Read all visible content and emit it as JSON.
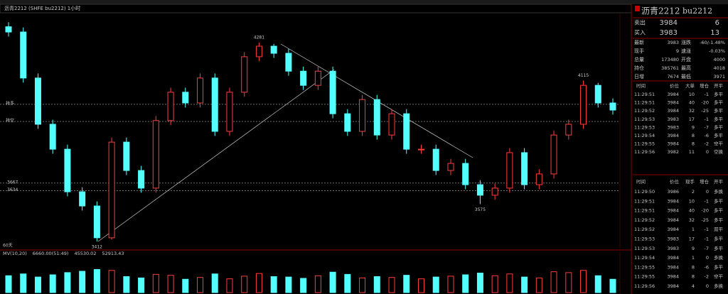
{
  "chart_data": {
    "type": "candlestick",
    "title": "沥青2212 (SHFE bu2212) 1小时",
    "open": [
      4350,
      4327,
      4126,
      3924,
      3815,
      3629,
      3567,
      3428,
      3846,
      3722,
      3645,
      3940,
      4064,
      4017,
      4126,
      3893,
      4064,
      4219,
      4265,
      4234,
      4156,
      4094,
      4156,
      3970,
      3893,
      4032,
      3877,
      3970,
      3815,
      3815,
      3722,
      3753,
      3660,
      3614,
      3645,
      3800,
      3660,
      3707,
      3877,
      3924,
      4094,
      4017
    ],
    "high": [
      4370,
      4347,
      4146,
      3944,
      3835,
      3649,
      3587,
      3866,
      3866,
      3742,
      3960,
      4084,
      4084,
      4146,
      4146,
      4084,
      4239,
      4281,
      4275,
      4254,
      4176,
      4176,
      4176,
      3990,
      4052,
      4052,
      3990,
      3990,
      3835,
      3835,
      3773,
      3773,
      3680,
      3665,
      3820,
      3820,
      3727,
      3897,
      3944,
      4115,
      4105,
      4037
    ],
    "low": [
      4307,
      4106,
      3904,
      3795,
      3609,
      3547,
      3412,
      3420,
      3702,
      3625,
      3625,
      3920,
      3997,
      3997,
      3873,
      3873,
      4044,
      4199,
      4214,
      4136,
      4074,
      4074,
      3950,
      3873,
      3873,
      3857,
      3857,
      3795,
      3795,
      3702,
      3702,
      3640,
      3575,
      3594,
      3625,
      3640,
      3640,
      3687,
      3857,
      3904,
      3997,
      3966
    ],
    "close": [
      4327,
      4126,
      3924,
      3815,
      3629,
      3567,
      3428,
      3846,
      3722,
      3645,
      3940,
      4064,
      4017,
      4126,
      3893,
      4064,
      4219,
      4265,
      4234,
      4156,
      4094,
      4156,
      3970,
      3893,
      4032,
      3877,
      3970,
      3815,
      3815,
      3722,
      3753,
      3660,
      3614,
      3645,
      3800,
      3660,
      3707,
      3877,
      3924,
      4094,
      4017,
      3986
    ],
    "volume": [
      38000,
      42000,
      35000,
      40000,
      45000,
      48000,
      52000,
      50000,
      36000,
      33000,
      41000,
      39000,
      30000,
      34000,
      42000,
      31000,
      37000,
      43000,
      36000,
      35000,
      32000,
      38000,
      46000,
      41000,
      33000,
      36000,
      34000,
      39000,
      31000,
      35000,
      37000,
      40000,
      44000,
      38000,
      42000,
      35000,
      33000,
      47000,
      45000,
      50000,
      38000,
      30000
    ],
    "ylim": [
      3381,
      4411
    ],
    "volume_ylim": [
      0,
      80000
    ],
    "up_color": "#ff3c3c",
    "down_color": "#54ffff",
    "price_lines": [
      3667,
      3634
    ],
    "position_lines": [
      {
        "name": "持多",
        "value": 4011
      },
      {
        "name": "持空",
        "value": 3936
      }
    ],
    "period_label": "60天",
    "volume_legend": [
      {
        "text": "MV(10,20)",
        "color": "#ffff00"
      },
      {
        "text": "6660.00(51:49)",
        "color": "#ffffff"
      },
      {
        "text": "45530.02",
        "color": "#ff66ff"
      },
      {
        "text": "52913.43",
        "color": "#00ff00"
      }
    ]
  },
  "panel": {
    "name": "沥青2212",
    "code": "bu2212",
    "quote": [
      [
        "卖出",
        "3984",
        "6"
      ],
      [
        "买入",
        "3983",
        "13"
      ]
    ],
    "stats": [
      [
        "最新",
        "3983",
        "涨跌",
        "-60/-1.48%"
      ],
      [
        "现手",
        "9",
        "速涨",
        "-0.03%"
      ],
      [
        "总量",
        "173480",
        "开盘",
        "4000"
      ],
      [
        "持仓",
        "385761",
        "最高",
        "4018"
      ],
      [
        "日增",
        "7674",
        "最低",
        "3971"
      ]
    ],
    "big_trades": {
      "header": [
        "时间",
        "价位",
        "大单",
        "增仓",
        "开平"
      ],
      "rows": [
        [
          "11:29:51",
          "3984",
          "10",
          "-1",
          "多平"
        ],
        [
          "11:29:51",
          "3984",
          "40",
          "-20",
          "多平"
        ],
        [
          "11:29:52",
          "3984",
          "32",
          "-25",
          "多平"
        ],
        [
          "11:29:53",
          "3983",
          "17",
          "-1",
          "多平"
        ],
        [
          "11:29:53",
          "3983",
          "9",
          "-7",
          "多平"
        ],
        [
          "11:29:54",
          "3984",
          "8",
          "-6",
          "多平"
        ],
        [
          "11:29:55",
          "3984",
          "8",
          "-2",
          "空平"
        ],
        [
          "11:29:56",
          "3982",
          "11",
          "0",
          "空换"
        ]
      ]
    },
    "trades": {
      "header": [
        "时间",
        "价位",
        "现手",
        "增仓",
        "开平"
      ],
      "rows": [
        [
          "11:29:50",
          "3986",
          "2",
          "0",
          "多换"
        ],
        [
          "11:29:51",
          "3984",
          "10",
          "-1",
          "多平"
        ],
        [
          "11:29:51",
          "3984",
          "40",
          "-20",
          "多平"
        ],
        [
          "11:29:52",
          "3984",
          "32",
          "-25",
          "多平"
        ],
        [
          "11:29:52",
          "3984",
          "1",
          "-1",
          "双平"
        ],
        [
          "11:29:53",
          "3983",
          "17",
          "-1",
          "多平"
        ],
        [
          "11:29:53",
          "3983",
          "9",
          "-7",
          "多平"
        ],
        [
          "11:29:54",
          "3984",
          "1",
          "0",
          "多换"
        ],
        [
          "11:29:55",
          "3984",
          "8",
          "-6",
          "多平"
        ],
        [
          "11:29:55",
          "3984",
          "8",
          "-2",
          "空平"
        ],
        [
          "11:29:56",
          "3984",
          "4",
          "0",
          "多换"
        ]
      ]
    }
  }
}
